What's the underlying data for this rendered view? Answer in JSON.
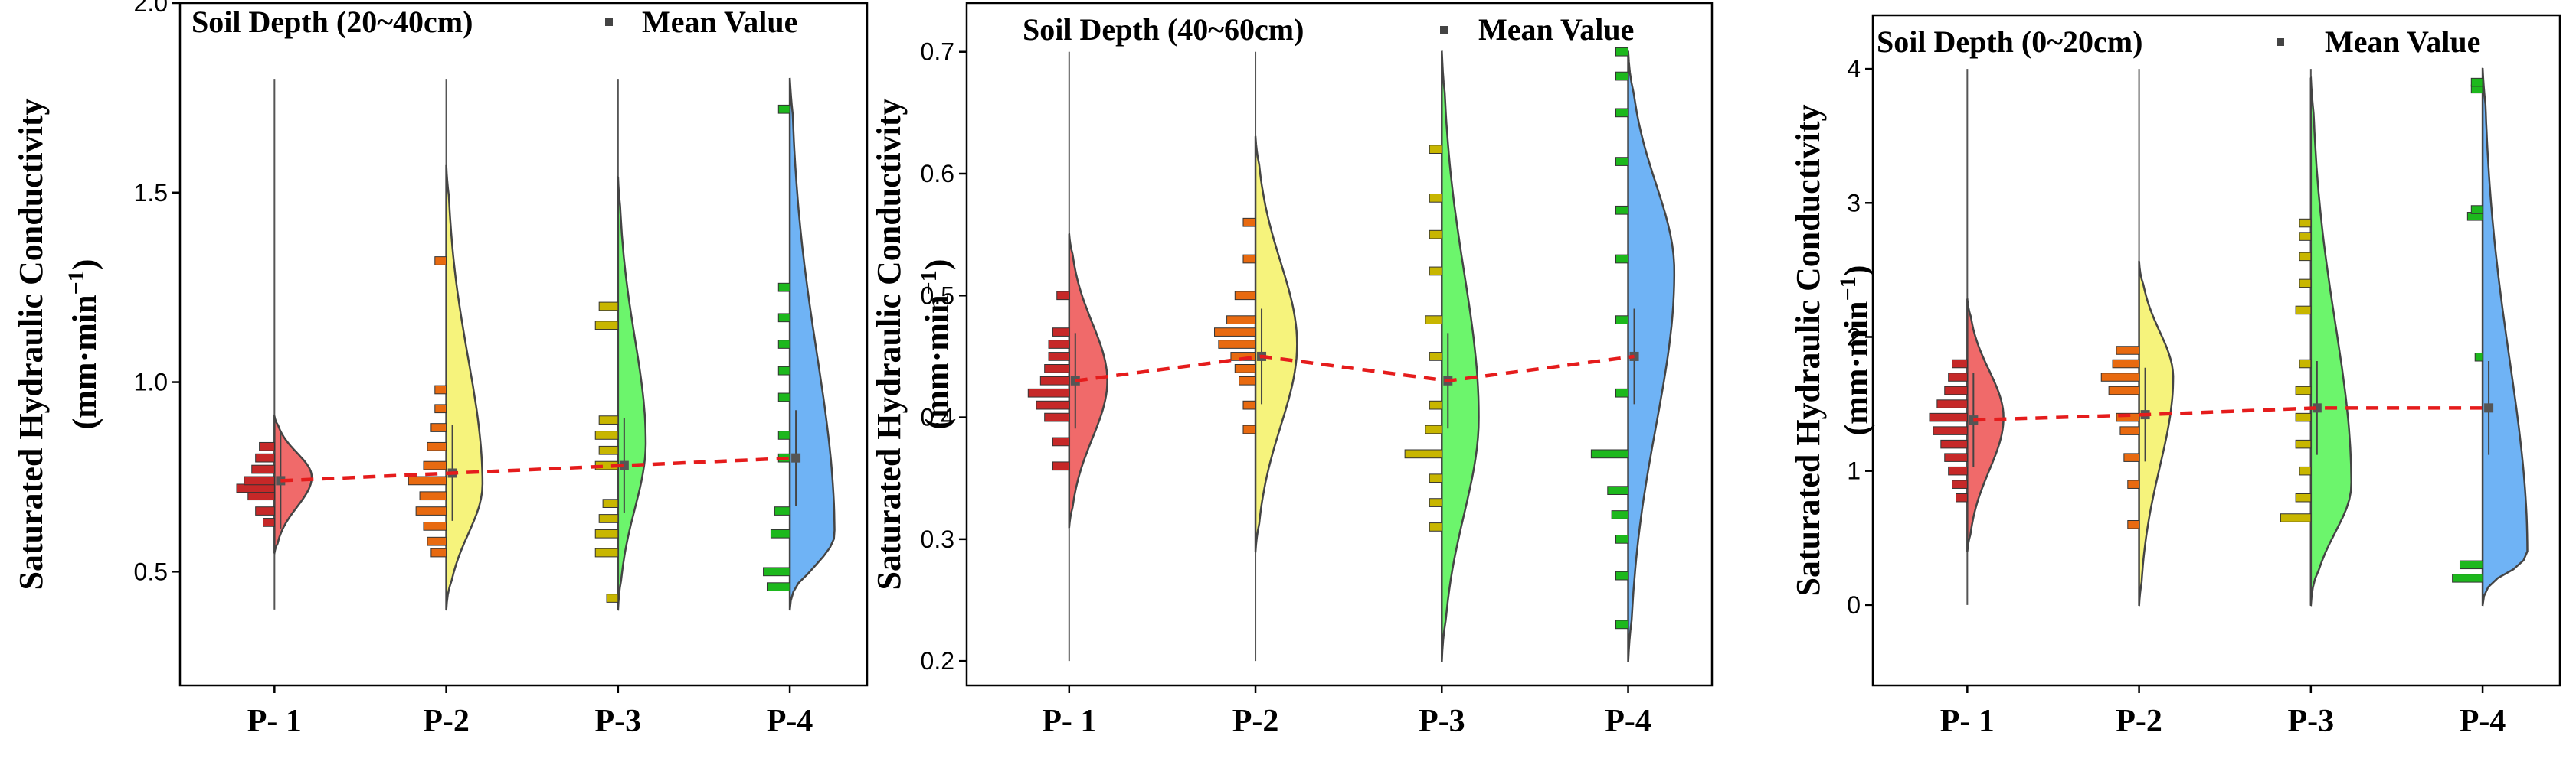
{
  "chart_data": [
    {
      "type": "half-violin",
      "title": "Soil Depth (20~40cm)",
      "legend_label": "Mean Value",
      "ylabel_line1": "Saturated  Hydraulic Conductivity",
      "ylabel_line2": "(mm·min",
      "ylabel_sup": "−1",
      "ylabel_close": ")",
      "ylim": [
        0.2,
        2.0
      ],
      "yticks": [
        0.5,
        1.0,
        1.5,
        2.0
      ],
      "ytick_labels": [
        "0.5",
        "1.0",
        "1.5",
        "2.0"
      ],
      "categories": [
        "P- 1",
        "P-2",
        "P-3",
        "P-4"
      ],
      "colors": [
        "#f06a6a",
        "#f6f37c",
        "#6cf56c",
        "#6fb3f5"
      ],
      "bar_colors": [
        "#c62828",
        "#e86a10",
        "#c8b600",
        "#1db81d"
      ],
      "means": [
        0.74,
        0.76,
        0.78,
        0.8
      ],
      "range": [
        [
          0.4,
          1.8
        ],
        [
          0.4,
          1.8
        ],
        [
          0.4,
          1.8
        ],
        [
          0.4,
          1.8
        ]
      ],
      "violin": [
        {
          "lo": 0.55,
          "hi": 0.91,
          "peak": 0.75,
          "width": 0.35
        },
        {
          "lo": 0.4,
          "hi": 1.57,
          "peak": 0.73,
          "width": 0.34
        },
        {
          "lo": 0.4,
          "hi": 1.54,
          "peak": 0.84,
          "width": 0.26
        },
        {
          "lo": 0.4,
          "hi": 1.8,
          "peak": 0.6,
          "width": 0.42
        }
      ],
      "bar_positions": [
        [
          0.63,
          0.66,
          0.7,
          0.72,
          0.74,
          0.77,
          0.8,
          0.83
        ],
        [
          0.55,
          0.58,
          0.62,
          0.66,
          0.7,
          0.74,
          0.78,
          0.83,
          0.88,
          0.93,
          0.98,
          1.32
        ],
        [
          0.43,
          0.55,
          0.6,
          0.64,
          0.68,
          0.78,
          0.82,
          0.86,
          0.9,
          1.15,
          1.2
        ],
        [
          0.46,
          0.5,
          0.6,
          0.66,
          0.8,
          0.86,
          0.96,
          1.03,
          1.1,
          1.17,
          1.25,
          1.72
        ]
      ],
      "bar_weights": [
        [
          0.3,
          0.5,
          0.7,
          1.0,
          0.8,
          0.6,
          0.5,
          0.4
        ],
        [
          0.4,
          0.5,
          0.6,
          0.8,
          0.7,
          1.0,
          0.6,
          0.5,
          0.4,
          0.3,
          0.3,
          0.3
        ],
        [
          0.3,
          0.6,
          0.6,
          0.5,
          0.4,
          0.6,
          0.5,
          0.6,
          0.5,
          0.6,
          0.5
        ],
        [
          0.6,
          0.7,
          0.5,
          0.4,
          0.3,
          0.3,
          0.3,
          0.3,
          0.3,
          0.3,
          0.3,
          0.3
        ]
      ]
    },
    {
      "type": "half-violin",
      "title": "Soil Depth (40~60cm)",
      "legend_label": "Mean Value",
      "ylabel_line1": "Saturated  Hydraulic Conductivity",
      "ylabel_line2": "(mm·min",
      "ylabel_sup": "−1",
      "ylabel_close": ")",
      "ylim": [
        0.18,
        0.74
      ],
      "yticks": [
        0.2,
        0.3,
        0.4,
        0.5,
        0.6,
        0.7
      ],
      "ytick_labels": [
        "0.2",
        "0.3",
        "0.4",
        "0.5",
        "0.6",
        "0.7"
      ],
      "categories": [
        "P- 1",
        "P-2",
        "P-3",
        "P-4"
      ],
      "colors": [
        "#f06a6a",
        "#f6f37c",
        "#6cf56c",
        "#6fb3f5"
      ],
      "bar_colors": [
        "#c62828",
        "#e86a10",
        "#c8b600",
        "#1db81d"
      ],
      "means": [
        0.43,
        0.45,
        0.43,
        0.45
      ],
      "range": [
        [
          0.2,
          0.7
        ],
        [
          0.2,
          0.7
        ],
        [
          0.2,
          0.7
        ],
        [
          0.2,
          0.7
        ]
      ],
      "violin": [
        {
          "lo": 0.31,
          "hi": 0.55,
          "peak": 0.43,
          "width": 0.33
        },
        {
          "lo": 0.29,
          "hi": 0.63,
          "peak": 0.46,
          "width": 0.36
        },
        {
          "lo": 0.2,
          "hi": 0.7,
          "peak": 0.4,
          "width": 0.32
        },
        {
          "lo": 0.2,
          "hi": 0.7,
          "peak": 0.52,
          "width": 0.4
        }
      ],
      "bar_positions": [
        [
          0.36,
          0.38,
          0.4,
          0.41,
          0.42,
          0.43,
          0.44,
          0.45,
          0.46,
          0.47,
          0.5
        ],
        [
          0.39,
          0.41,
          0.43,
          0.44,
          0.45,
          0.46,
          0.47,
          0.48,
          0.5,
          0.53,
          0.56
        ],
        [
          0.31,
          0.33,
          0.35,
          0.37,
          0.39,
          0.41,
          0.45,
          0.48,
          0.52,
          0.55,
          0.58,
          0.62
        ],
        [
          0.23,
          0.27,
          0.3,
          0.32,
          0.34,
          0.37,
          0.42,
          0.48,
          0.53,
          0.57,
          0.61,
          0.65,
          0.68,
          0.7
        ]
      ],
      "bar_weights": [
        [
          0.4,
          0.4,
          0.6,
          0.8,
          1.0,
          0.7,
          0.6,
          0.5,
          0.5,
          0.4,
          0.3
        ],
        [
          0.3,
          0.3,
          0.4,
          0.5,
          0.6,
          0.9,
          1.0,
          0.7,
          0.5,
          0.3,
          0.3
        ],
        [
          0.3,
          0.3,
          0.3,
          0.9,
          0.4,
          0.3,
          0.3,
          0.4,
          0.3,
          0.3,
          0.3,
          0.3
        ],
        [
          0.3,
          0.3,
          0.3,
          0.4,
          0.5,
          0.9,
          0.3,
          0.3,
          0.3,
          0.3,
          0.3,
          0.3,
          0.3,
          0.3
        ]
      ]
    },
    {
      "type": "half-violin",
      "title": "Soil Depth (0~20cm)",
      "legend_label": "Mean Value",
      "ylabel_line1": "Saturated  Hydraulic Conductivity",
      "ylabel_line2": "(mm·min",
      "ylabel_sup": "−1",
      "ylabel_close": ")",
      "ylim": [
        -0.6,
        4.4
      ],
      "yticks": [
        0,
        1,
        2,
        3,
        4
      ],
      "ytick_labels": [
        "0",
        "1",
        "2",
        "3",
        "4"
      ],
      "categories": [
        "P- 1",
        "P-2",
        "P-3",
        "P-4"
      ],
      "colors": [
        "#f06a6a",
        "#f6f37c",
        "#6cf56c",
        "#6fb3f5"
      ],
      "bar_colors": [
        "#c62828",
        "#e86a10",
        "#c8b600",
        "#1db81d"
      ],
      "means": [
        1.38,
        1.42,
        1.47,
        1.47
      ],
      "range": [
        [
          0,
          4
        ],
        [
          0,
          4
        ],
        [
          0,
          4
        ],
        [
          0,
          4
        ]
      ],
      "violin": [
        {
          "lo": 0.4,
          "hi": 2.28,
          "peak": 1.4,
          "width": 0.34
        },
        {
          "lo": 0.0,
          "hi": 2.56,
          "peak": 1.7,
          "width": 0.32
        },
        {
          "lo": 0.0,
          "hi": 3.93,
          "peak": 0.9,
          "width": 0.38
        },
        {
          "lo": 0.0,
          "hi": 4.0,
          "peak": 0.4,
          "width": 0.42
        }
      ],
      "bar_positions": [
        [
          0.8,
          0.9,
          1.0,
          1.1,
          1.2,
          1.3,
          1.4,
          1.5,
          1.6,
          1.7,
          1.8
        ],
        [
          0.6,
          0.9,
          1.1,
          1.3,
          1.4,
          1.6,
          1.7,
          1.8,
          1.9
        ],
        [
          0.65,
          0.8,
          1.0,
          1.2,
          1.4,
          1.6,
          1.8,
          2.2,
          2.4,
          2.6,
          2.75,
          2.85
        ],
        [
          0.2,
          0.3,
          1.85,
          2.9,
          2.95,
          3.85,
          3.9
        ]
      ],
      "bar_weights": [
        [
          0.3,
          0.4,
          0.5,
          0.6,
          0.7,
          0.9,
          1.0,
          0.8,
          0.6,
          0.5,
          0.4
        ],
        [
          0.3,
          0.3,
          0.4,
          0.5,
          0.6,
          0.8,
          1.0,
          0.7,
          0.6
        ],
        [
          0.8,
          0.4,
          0.3,
          0.4,
          0.4,
          0.4,
          0.3,
          0.4,
          0.3,
          0.3,
          0.3,
          0.3
        ],
        [
          0.8,
          0.6,
          0.2,
          0.4,
          0.3,
          0.3,
          0.3
        ]
      ]
    }
  ]
}
